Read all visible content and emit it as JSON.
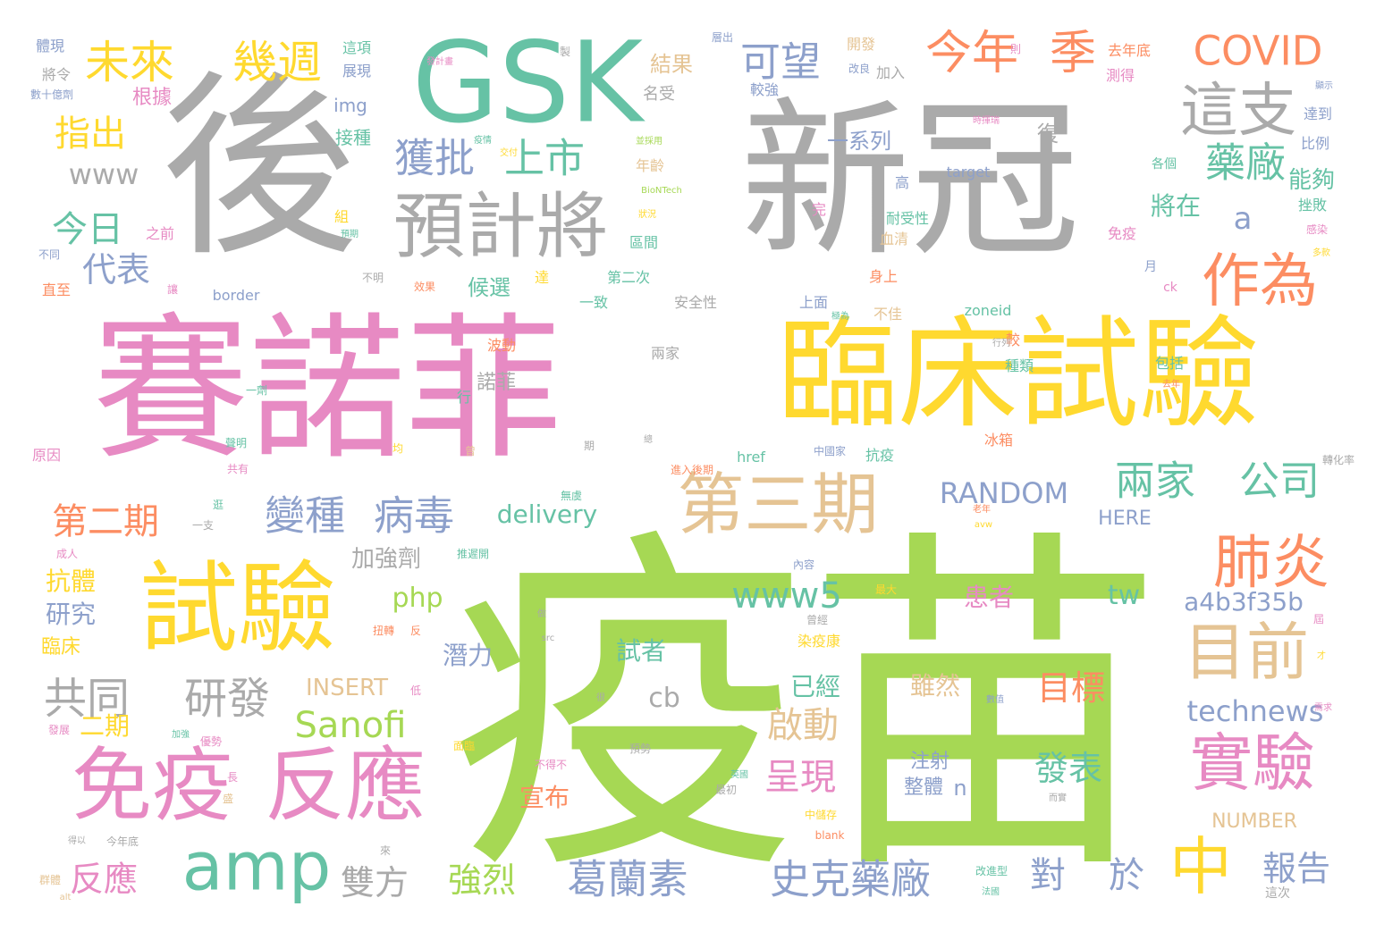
{
  "palette": {
    "gray": "#aaaaaa",
    "pink": "#e78ac3",
    "green": "#a6d854",
    "teal": "#66c2a5",
    "orange": "#fc8d62",
    "blue": "#8da0cb",
    "yellow": "#ffd92f",
    "tan": "#e5c494"
  },
  "words": [
    {
      "text": "疫苗",
      "color": "green"
    },
    {
      "text": "新冠",
      "color": "gray"
    },
    {
      "text": "後",
      "color": "gray"
    },
    {
      "text": "賽諾菲",
      "color": "pink"
    },
    {
      "text": "臨床試驗",
      "color": "yellow"
    },
    {
      "text": "GSK",
      "color": "teal"
    },
    {
      "text": "試驗",
      "color": "yellow"
    },
    {
      "text": "預計將",
      "color": "gray"
    },
    {
      "text": "免疫",
      "color": "pink"
    },
    {
      "text": "反應",
      "color": "pink"
    },
    {
      "text": "第三期",
      "color": "tan"
    },
    {
      "text": "amp",
      "color": "teal"
    },
    {
      "text": "目前",
      "color": "tan"
    },
    {
      "text": "實驗",
      "color": "pink"
    },
    {
      "text": "作為",
      "color": "orange"
    },
    {
      "text": "肺炎",
      "color": "orange"
    },
    {
      "text": "這支",
      "color": "gray"
    },
    {
      "text": "中",
      "color": "yellow"
    },
    {
      "text": "未來",
      "color": "yellow"
    },
    {
      "text": "幾週",
      "color": "yellow"
    },
    {
      "text": "今年",
      "color": "orange"
    },
    {
      "text": "季",
      "color": "orange"
    },
    {
      "text": "COVID",
      "color": "orange"
    },
    {
      "text": "獲批",
      "color": "blue"
    },
    {
      "text": "上市",
      "color": "teal"
    },
    {
      "text": "藥廠",
      "color": "teal"
    },
    {
      "text": "可望",
      "color": "blue"
    },
    {
      "text": "指出",
      "color": "yellow"
    },
    {
      "text": "www",
      "color": "gray"
    },
    {
      "text": "今日",
      "color": "teal"
    },
    {
      "text": "代表",
      "color": "blue"
    },
    {
      "text": "a",
      "color": "blue"
    },
    {
      "text": "變種",
      "color": "blue"
    },
    {
      "text": "病毒",
      "color": "blue"
    },
    {
      "text": "兩家",
      "color": "teal"
    },
    {
      "text": "公司",
      "color": "teal"
    },
    {
      "text": "第二期",
      "color": "orange"
    },
    {
      "text": "共同",
      "color": "gray"
    },
    {
      "text": "研發",
      "color": "gray"
    },
    {
      "text": "www5",
      "color": "teal"
    },
    {
      "text": "Sanofi",
      "color": "green"
    },
    {
      "text": "RANDOM",
      "color": "blue"
    },
    {
      "text": "delivery",
      "color": "teal"
    },
    {
      "text": "葛蘭素",
      "color": "blue"
    },
    {
      "text": "史克藥廠",
      "color": "blue"
    },
    {
      "text": "對",
      "color": "blue"
    },
    {
      "text": "於",
      "color": "blue"
    },
    {
      "text": "報告",
      "color": "blue"
    },
    {
      "text": "technews",
      "color": "blue"
    },
    {
      "text": "a4b3f35b",
      "color": "blue"
    },
    {
      "text": "目標",
      "color": "orange"
    },
    {
      "text": "發表",
      "color": "teal"
    },
    {
      "text": "啟動",
      "color": "tan"
    },
    {
      "text": "呈現",
      "color": "pink"
    },
    {
      "text": "強烈",
      "color": "green"
    },
    {
      "text": "雙方",
      "color": "gray"
    },
    {
      "text": "反應",
      "color": "pink"
    },
    {
      "text": "tw",
      "color": "teal"
    },
    {
      "text": "php",
      "color": "green"
    },
    {
      "text": "cb",
      "color": "gray"
    },
    {
      "text": "INSERT",
      "color": "tan"
    },
    {
      "text": "加強劑",
      "color": "gray"
    },
    {
      "text": "抗體",
      "color": "yellow"
    },
    {
      "text": "研究",
      "color": "blue"
    },
    {
      "text": "臨床",
      "color": "yellow"
    },
    {
      "text": "二期",
      "color": "yellow"
    },
    {
      "text": "潛力",
      "color": "blue"
    },
    {
      "text": "試者",
      "color": "teal"
    },
    {
      "text": "雖然",
      "color": "tan"
    },
    {
      "text": "已經",
      "color": "teal"
    },
    {
      "text": "患者",
      "color": "pink"
    },
    {
      "text": "注射",
      "color": "blue"
    },
    {
      "text": "整體",
      "color": "blue"
    },
    {
      "text": "n",
      "color": "blue"
    },
    {
      "text": "宣布",
      "color": "orange"
    },
    {
      "text": "NUMBER",
      "color": "tan"
    },
    {
      "text": "HERE",
      "color": "blue"
    },
    {
      "text": "將在",
      "color": "teal"
    },
    {
      "text": "能夠",
      "color": "teal"
    },
    {
      "text": "候選",
      "color": "teal"
    },
    {
      "text": "諾菲",
      "color": "gray"
    },
    {
      "text": "一系列",
      "color": "blue"
    },
    {
      "text": "結果",
      "color": "tan"
    },
    {
      "text": "復",
      "color": "gray"
    },
    {
      "text": "名受",
      "color": "gray"
    },
    {
      "text": "img",
      "color": "blue"
    },
    {
      "text": "接種",
      "color": "teal"
    },
    {
      "text": "根據",
      "color": "pink"
    },
    {
      "text": "體現",
      "color": "blue"
    },
    {
      "text": "將令",
      "color": "gray"
    },
    {
      "text": "數十億劑",
      "color": "blue"
    },
    {
      "text": "這項",
      "color": "teal"
    },
    {
      "text": "展現",
      "color": "blue"
    },
    {
      "text": "發計畫",
      "color": "pink"
    },
    {
      "text": "疫情",
      "color": "teal"
    },
    {
      "text": "製",
      "color": "gray"
    },
    {
      "text": "層出",
      "color": "blue"
    },
    {
      "text": "開發",
      "color": "tan"
    },
    {
      "text": "改良",
      "color": "blue"
    },
    {
      "text": "加入",
      "color": "gray"
    },
    {
      "text": "則",
      "color": "pink"
    },
    {
      "text": "去年底",
      "color": "orange"
    },
    {
      "text": "測得",
      "color": "pink"
    },
    {
      "text": "顯示",
      "color": "blue"
    },
    {
      "text": "達到",
      "color": "blue"
    },
    {
      "text": "比例",
      "color": "blue"
    },
    {
      "text": "較強",
      "color": "blue"
    },
    {
      "text": "時揮瑞",
      "color": "pink"
    },
    {
      "text": "並採用",
      "color": "green"
    },
    {
      "text": "交付",
      "color": "yellow"
    },
    {
      "text": "BioNTech",
      "color": "green"
    },
    {
      "text": "target",
      "color": "blue"
    },
    {
      "text": "各個",
      "color": "teal"
    },
    {
      "text": "挫敗",
      "color": "teal"
    },
    {
      "text": "感染",
      "color": "pink"
    },
    {
      "text": "多款",
      "color": "yellow"
    },
    {
      "text": "高",
      "color": "blue"
    },
    {
      "text": "完",
      "color": "pink"
    },
    {
      "text": "耐受性",
      "color": "teal"
    },
    {
      "text": "血清",
      "color": "tan"
    },
    {
      "text": "免疫",
      "color": "pink"
    },
    {
      "text": "年齡",
      "color": "tan"
    },
    {
      "text": "狀況",
      "color": "yellow"
    },
    {
      "text": "區間",
      "color": "teal"
    },
    {
      "text": "組",
      "color": "yellow"
    },
    {
      "text": "預期",
      "color": "teal"
    },
    {
      "text": "之前",
      "color": "pink"
    },
    {
      "text": "不同",
      "color": "blue"
    },
    {
      "text": "不明",
      "color": "gray"
    },
    {
      "text": "效果",
      "color": "orange"
    },
    {
      "text": "達",
      "color": "yellow"
    },
    {
      "text": "第二次",
      "color": "teal"
    },
    {
      "text": "身上",
      "color": "orange"
    },
    {
      "text": "月",
      "color": "blue"
    },
    {
      "text": "ck",
      "color": "pink"
    },
    {
      "text": "直至",
      "color": "orange"
    },
    {
      "text": "讓",
      "color": "pink"
    },
    {
      "text": "border",
      "color": "blue"
    },
    {
      "text": "一致",
      "color": "teal"
    },
    {
      "text": "安全性",
      "color": "gray"
    },
    {
      "text": "上面",
      "color": "blue"
    },
    {
      "text": "極為",
      "color": "teal"
    },
    {
      "text": "不佳",
      "color": "tan"
    },
    {
      "text": "zoneid",
      "color": "teal"
    },
    {
      "text": "較",
      "color": "orange"
    },
    {
      "text": "行列",
      "color": "gray"
    },
    {
      "text": "種類",
      "color": "teal"
    },
    {
      "text": "包括",
      "color": "teal"
    },
    {
      "text": "去年",
      "color": "orange"
    },
    {
      "text": "波動",
      "color": "orange"
    },
    {
      "text": "兩家",
      "color": "gray"
    },
    {
      "text": "一劑",
      "color": "teal"
    },
    {
      "text": "行",
      "color": "teal"
    },
    {
      "text": "聲明",
      "color": "teal"
    },
    {
      "text": "共有",
      "color": "pink"
    },
    {
      "text": "原因",
      "color": "pink"
    },
    {
      "text": "均",
      "color": "yellow"
    },
    {
      "text": "曾",
      "color": "tan"
    },
    {
      "text": "期",
      "color": "gray"
    },
    {
      "text": "總",
      "color": "gray"
    },
    {
      "text": "中國家",
      "color": "blue"
    },
    {
      "text": "冰箱",
      "color": "orange"
    },
    {
      "text": "抗疫",
      "color": "teal"
    },
    {
      "text": "href",
      "color": "teal"
    },
    {
      "text": "轉化率",
      "color": "gray"
    },
    {
      "text": "逛",
      "color": "teal"
    },
    {
      "text": "一支",
      "color": "gray"
    },
    {
      "text": "無虞",
      "color": "teal"
    },
    {
      "text": "老年",
      "color": "orange"
    },
    {
      "text": "avw",
      "color": "yellow"
    },
    {
      "text": "成人",
      "color": "pink"
    },
    {
      "text": "推遲開",
      "color": "teal"
    },
    {
      "text": "內容",
      "color": "blue"
    },
    {
      "text": "做",
      "color": "gray"
    },
    {
      "text": "最大",
      "color": "yellow"
    },
    {
      "text": "曾經",
      "color": "gray"
    },
    {
      "text": "染疫康",
      "color": "yellow"
    },
    {
      "text": "扭轉",
      "color": "orange"
    },
    {
      "text": "反",
      "color": "orange"
    },
    {
      "text": "src",
      "color": "gray"
    },
    {
      "text": "屆",
      "color": "pink"
    },
    {
      "text": "才",
      "color": "yellow"
    },
    {
      "text": "低",
      "color": "pink"
    },
    {
      "text": "很",
      "color": "gray"
    },
    {
      "text": "數值",
      "color": "blue"
    },
    {
      "text": "需求",
      "color": "pink"
    },
    {
      "text": "發展",
      "color": "pink"
    },
    {
      "text": "加強",
      "color": "teal"
    },
    {
      "text": "優勢",
      "color": "pink"
    },
    {
      "text": "面臨",
      "color": "yellow"
    },
    {
      "text": "預勢",
      "color": "gray"
    },
    {
      "text": "不得不",
      "color": "pink"
    },
    {
      "text": "英國",
      "color": "teal"
    },
    {
      "text": "長",
      "color": "pink"
    },
    {
      "text": "盛",
      "color": "tan"
    },
    {
      "text": "最初",
      "color": "gray"
    },
    {
      "text": "而實",
      "color": "gray"
    },
    {
      "text": "中儲存",
      "color": "yellow"
    },
    {
      "text": "得以",
      "color": "gray"
    },
    {
      "text": "今年底",
      "color": "gray"
    },
    {
      "text": "來",
      "color": "gray"
    },
    {
      "text": "blank",
      "color": "orange"
    },
    {
      "text": "群體",
      "color": "tan"
    },
    {
      "text": "alt",
      "color": "tan"
    },
    {
      "text": "改進型",
      "color": "teal"
    },
    {
      "text": "法國",
      "color": "teal"
    },
    {
      "text": "這次",
      "color": "gray"
    },
    {
      "text": "進入後期",
      "color": "orange"
    }
  ]
}
